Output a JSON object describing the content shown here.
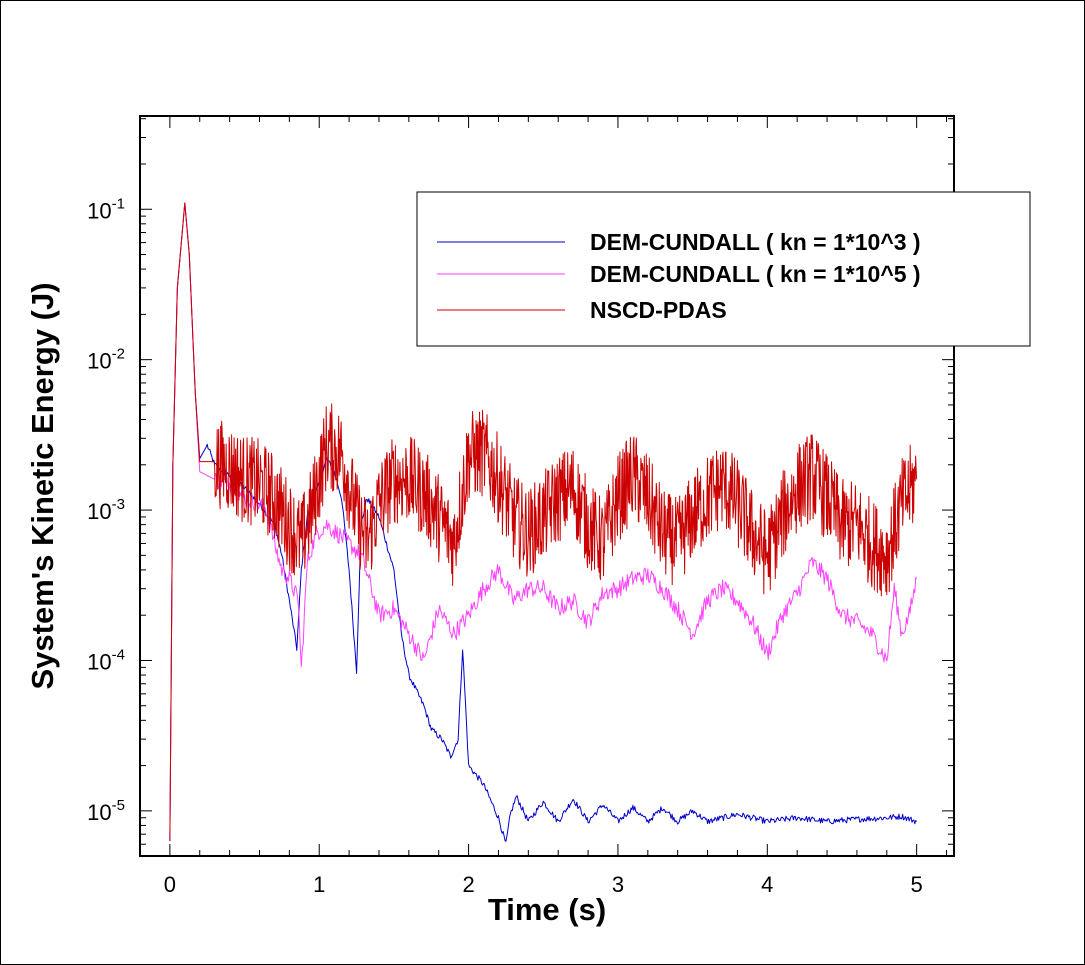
{
  "chart_data": {
    "type": "line",
    "xlabel": "Time (s)",
    "ylabel": "System's Kinetic Energy (J)",
    "xlim": [
      -0.2,
      5.25
    ],
    "ylim_log10": [
      -5.3,
      -0.38
    ],
    "yscale": "log",
    "x_ticks": [
      "0",
      "1",
      "2",
      "3",
      "4",
      "5"
    ],
    "y_ticks": [
      {
        "base": "10",
        "exp": "-5"
      },
      {
        "base": "10",
        "exp": "-4"
      },
      {
        "base": "10",
        "exp": "-3"
      },
      {
        "base": "10",
        "exp": "-2"
      },
      {
        "base": "10",
        "exp": "-1"
      }
    ],
    "legend_position": "top-right",
    "grid": false,
    "series": [
      {
        "name": "DEM-CUNDALL ( kn = 1*10^3 )",
        "color": "#0000cc",
        "noise": 0.02,
        "points": [
          [
            0,
            6.3e-06
          ],
          [
            0.02,
            0.002
          ],
          [
            0.05,
            0.03
          ],
          [
            0.1,
            0.11
          ],
          [
            0.13,
            0.05
          ],
          [
            0.17,
            0.006
          ],
          [
            0.2,
            0.0022
          ],
          [
            0.25,
            0.0027
          ],
          [
            0.3,
            0.002
          ],
          [
            0.4,
            0.0017
          ],
          [
            0.5,
            0.0014
          ],
          [
            0.6,
            0.0011
          ],
          [
            0.7,
            0.0008
          ],
          [
            0.75,
            0.0005
          ],
          [
            0.8,
            0.00025
          ],
          [
            0.85,
            0.00012
          ],
          [
            0.88,
            0.0004
          ],
          [
            0.92,
            0.0009
          ],
          [
            1.0,
            0.0015
          ],
          [
            1.05,
            0.0022
          ],
          [
            1.1,
            0.0018
          ],
          [
            1.15,
            0.0012
          ],
          [
            1.2,
            0.0004
          ],
          [
            1.25,
            8.5e-05
          ],
          [
            1.28,
            0.0008
          ],
          [
            1.32,
            0.0012
          ],
          [
            1.4,
            0.0009
          ],
          [
            1.5,
            0.0004
          ],
          [
            1.55,
            0.00015
          ],
          [
            1.6,
            8e-05
          ],
          [
            1.7,
            5e-05
          ],
          [
            1.75,
            3.5e-05
          ],
          [
            1.82,
            3e-05
          ],
          [
            1.88,
            2.3e-05
          ],
          [
            1.93,
            3e-05
          ],
          [
            1.96,
            0.00012
          ],
          [
            1.98,
            5e-05
          ],
          [
            2.0,
            2e-05
          ],
          [
            2.1,
            1.5e-05
          ],
          [
            2.2,
            9e-06
          ],
          [
            2.25,
            6e-06
          ],
          [
            2.28,
            9.5e-06
          ],
          [
            2.32,
            1.25e-05
          ],
          [
            2.4,
            8.5e-06
          ],
          [
            2.5,
            1.15e-05
          ],
          [
            2.6,
            8.5e-06
          ],
          [
            2.7,
            1.2e-05
          ],
          [
            2.8,
            8.5e-06
          ],
          [
            2.9,
            1.1e-05
          ],
          [
            3.0,
            8.5e-06
          ],
          [
            3.1,
            1.05e-05
          ],
          [
            3.2,
            8.5e-06
          ],
          [
            3.3,
            1.05e-05
          ],
          [
            3.4,
            8.5e-06
          ],
          [
            3.5,
            1e-05
          ],
          [
            3.6,
            8.5e-06
          ],
          [
            3.8,
            9.5e-06
          ],
          [
            4.0,
            8.5e-06
          ],
          [
            4.2,
            9e-06
          ],
          [
            4.4,
            8.5e-06
          ],
          [
            4.6,
            8.8e-06
          ],
          [
            4.8,
            9e-06
          ],
          [
            4.9,
            9.2e-06
          ],
          [
            5.0,
            8.5e-06
          ]
        ]
      },
      {
        "name": "DEM-CUNDALL ( kn = 1*10^5 )",
        "color": "#ff44ff",
        "noise": 0.06,
        "points": [
          [
            0,
            6.3e-06
          ],
          [
            0.02,
            0.002
          ],
          [
            0.05,
            0.03
          ],
          [
            0.1,
            0.11
          ],
          [
            0.13,
            0.05
          ],
          [
            0.17,
            0.006
          ],
          [
            0.2,
            0.0018
          ],
          [
            0.3,
            0.0016
          ],
          [
            0.4,
            0.0015
          ],
          [
            0.5,
            0.0012
          ],
          [
            0.6,
            0.0011
          ],
          [
            0.65,
            0.001
          ],
          [
            0.7,
            0.0006
          ],
          [
            0.75,
            0.0004
          ],
          [
            0.8,
            0.00035
          ],
          [
            0.86,
            0.00025
          ],
          [
            0.88,
            8.5e-05
          ],
          [
            0.92,
            0.00045
          ],
          [
            0.98,
            0.0007
          ],
          [
            1.05,
            0.0008
          ],
          [
            1.12,
            0.0007
          ],
          [
            1.2,
            0.0006
          ],
          [
            1.28,
            0.0005
          ],
          [
            1.35,
            0.0003
          ],
          [
            1.4,
            0.0002
          ],
          [
            1.5,
            0.00022
          ],
          [
            1.6,
            0.00015
          ],
          [
            1.7,
            0.0001
          ],
          [
            1.8,
            0.00022
          ],
          [
            1.9,
            0.00015
          ],
          [
            2.0,
            0.0002
          ],
          [
            2.1,
            0.0003
          ],
          [
            2.2,
            0.0004
          ],
          [
            2.3,
            0.00025
          ],
          [
            2.4,
            0.0003
          ],
          [
            2.5,
            0.0003
          ],
          [
            2.6,
            0.00022
          ],
          [
            2.7,
            0.00025
          ],
          [
            2.8,
            0.00018
          ],
          [
            2.9,
            0.00028
          ],
          [
            3.0,
            0.0003
          ],
          [
            3.1,
            0.00035
          ],
          [
            3.2,
            0.00037
          ],
          [
            3.3,
            0.0003
          ],
          [
            3.4,
            0.00022
          ],
          [
            3.5,
            0.00015
          ],
          [
            3.6,
            0.00025
          ],
          [
            3.7,
            0.0003
          ],
          [
            3.8,
            0.00025
          ],
          [
            3.9,
            0.00018
          ],
          [
            4.0,
            0.00011
          ],
          [
            4.1,
            0.0002
          ],
          [
            4.2,
            0.00028
          ],
          [
            4.3,
            0.00045
          ],
          [
            4.4,
            0.00035
          ],
          [
            4.5,
            0.0002
          ],
          [
            4.6,
            0.00018
          ],
          [
            4.7,
            0.00015
          ],
          [
            4.8,
            0.0001
          ],
          [
            4.85,
            0.0003
          ],
          [
            4.9,
            0.00015
          ],
          [
            4.95,
            0.0002
          ],
          [
            5.0,
            0.00035
          ]
        ]
      },
      {
        "name": "NSCD-PDAS",
        "color": "#cc0000",
        "noise": 0.3,
        "points": [
          [
            0,
            6.3e-06
          ],
          [
            0.02,
            0.002
          ],
          [
            0.05,
            0.03
          ],
          [
            0.1,
            0.11
          ],
          [
            0.13,
            0.05
          ],
          [
            0.17,
            0.006
          ],
          [
            0.2,
            0.0021
          ],
          [
            0.3,
            0.0021
          ],
          [
            0.4,
            0.0019
          ],
          [
            0.5,
            0.0016
          ],
          [
            0.6,
            0.0015
          ],
          [
            0.7,
            0.0012
          ],
          [
            0.8,
            0.0008
          ],
          [
            0.88,
            0.0006
          ],
          [
            0.95,
            0.001
          ],
          [
            1.05,
            0.0027
          ],
          [
            1.15,
            0.0024
          ],
          [
            1.25,
            0.0009
          ],
          [
            1.32,
            0.0006
          ],
          [
            1.4,
            0.0011
          ],
          [
            1.5,
            0.0016
          ],
          [
            1.6,
            0.0016
          ],
          [
            1.7,
            0.0013
          ],
          [
            1.8,
            0.0009
          ],
          [
            1.9,
            0.0006
          ],
          [
            2.0,
            0.0023
          ],
          [
            2.1,
            0.0024
          ],
          [
            2.2,
            0.0016
          ],
          [
            2.3,
            0.0009
          ],
          [
            2.4,
            0.0007
          ],
          [
            2.5,
            0.0009
          ],
          [
            2.6,
            0.0012
          ],
          [
            2.7,
            0.0014
          ],
          [
            2.8,
            0.0008
          ],
          [
            2.9,
            0.0006
          ],
          [
            3.0,
            0.0012
          ],
          [
            3.1,
            0.0017
          ],
          [
            3.2,
            0.0012
          ],
          [
            3.3,
            0.0007
          ],
          [
            3.4,
            0.0006
          ],
          [
            3.5,
            0.0009
          ],
          [
            3.6,
            0.0012
          ],
          [
            3.7,
            0.0015
          ],
          [
            3.8,
            0.0011
          ],
          [
            3.9,
            0.0007
          ],
          [
            4.0,
            0.0005
          ],
          [
            4.1,
            0.0009
          ],
          [
            4.2,
            0.0014
          ],
          [
            4.3,
            0.0017
          ],
          [
            4.4,
            0.0012
          ],
          [
            4.5,
            0.0008
          ],
          [
            4.6,
            0.0008
          ],
          [
            4.7,
            0.0006
          ],
          [
            4.8,
            0.0005
          ],
          [
            4.9,
            0.0011
          ],
          [
            5.0,
            0.0016
          ]
        ]
      }
    ]
  }
}
